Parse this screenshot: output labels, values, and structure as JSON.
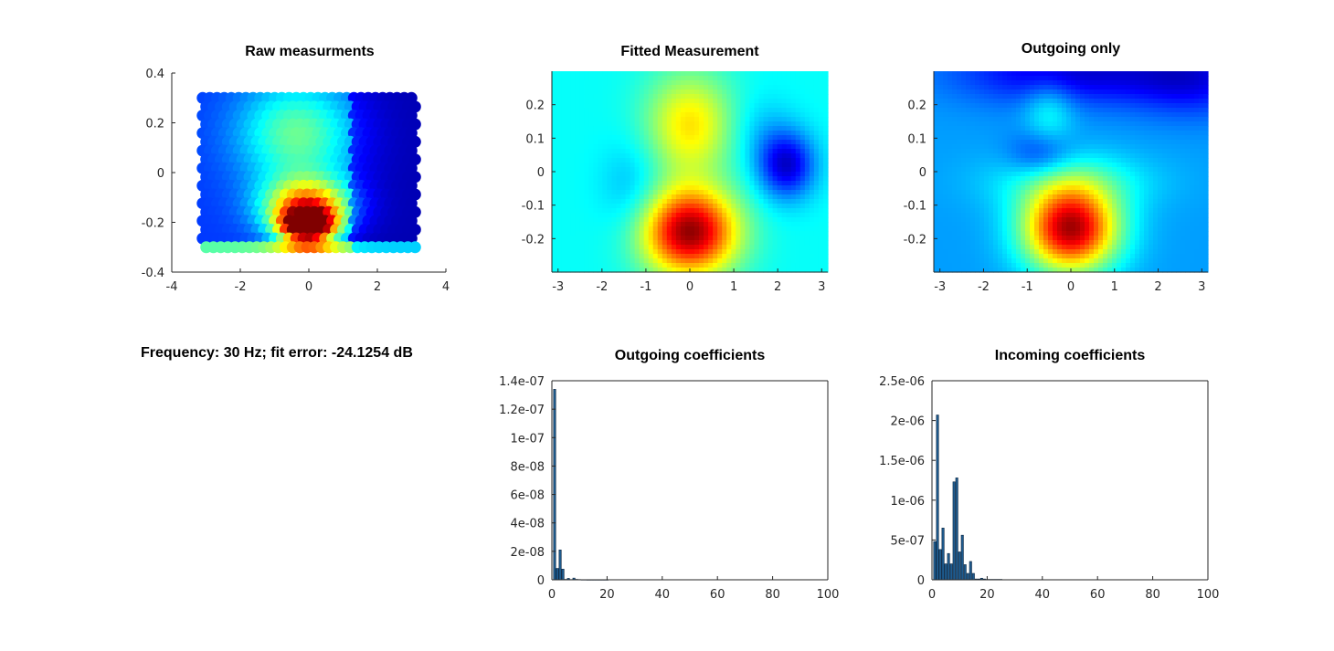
{
  "caption": {
    "label": "Frequency: 30 Hz; fit error: -24.1254 dB"
  },
  "colors": {
    "bar_fill": "#1f5c8f",
    "bar_edge": "#0b2540",
    "axis": "#262626"
  },
  "chart_data": [
    {
      "id": "raw",
      "type": "scatter",
      "title": "Raw measurments",
      "xlim": [
        -4,
        4
      ],
      "ylim": [
        -0.4,
        0.4
      ],
      "xticks": [
        -4,
        -2,
        0,
        2,
        4
      ],
      "yticks": [
        -0.4,
        -0.2,
        0,
        0.2,
        0.4
      ],
      "xticklabels": [
        "-4",
        "-2",
        "0",
        "2",
        "4"
      ],
      "yticklabels": [
        "-0.4",
        "-0.2",
        "0",
        "0.2",
        "0.4"
      ],
      "colormap": "jet",
      "box": false,
      "grid": false,
      "points_x_range": [
        -3.1,
        3.1
      ],
      "points_y_range": [
        -0.3,
        0.3
      ],
      "features": [
        {
          "x": 0,
          "y": -0.22,
          "value": 0.9,
          "sx": 0.55,
          "sy": 0.05
        },
        {
          "x": 0,
          "y": -0.14,
          "value": 0.55,
          "sx": 0.9,
          "sy": 0.08
        },
        {
          "x": -0.3,
          "y": 0.15,
          "value": 0.3,
          "sx": 1.2,
          "sy": 0.15
        }
      ]
    },
    {
      "id": "fitted",
      "type": "heatmap",
      "title": "Fitted Measurement",
      "xlim": [
        -3.14,
        3.14
      ],
      "ylim": [
        -0.3,
        0.3
      ],
      "xticks": [
        -3,
        -2,
        -1,
        0,
        1,
        2,
        3
      ],
      "yticks": [
        -0.2,
        -0.1,
        0,
        0.1,
        0.2
      ],
      "xticklabels": [
        "-3",
        "-2",
        "-1",
        "0",
        "1",
        "2",
        "3"
      ],
      "yticklabels": [
        "-0.2",
        "-0.1",
        "0",
        "0.1",
        "0.2"
      ],
      "colormap": "jet",
      "box": false,
      "grid": false,
      "background_level": 0.38,
      "features": [
        {
          "x": 0,
          "y": -0.18,
          "value": 0.6,
          "sx": 0.75,
          "sy": 0.09
        },
        {
          "x": 0,
          "y": 0.14,
          "value": 0.27,
          "sx": 0.7,
          "sy": 0.11
        },
        {
          "x": 2.2,
          "y": 0.02,
          "value": -0.3,
          "sx": 0.45,
          "sy": 0.07
        },
        {
          "x": -1.3,
          "y": -0.05,
          "value": -0.08,
          "sx": 0.5,
          "sy": 0.1
        },
        {
          "x": 1.6,
          "y": 0.12,
          "value": -0.06,
          "sx": 0.5,
          "sy": 0.08
        }
      ]
    },
    {
      "id": "outgoing",
      "type": "heatmap",
      "title": "Outgoing only",
      "xlim": [
        -3.14,
        3.14
      ],
      "ylim": [
        -0.3,
        0.3
      ],
      "xticks": [
        -3,
        -2,
        -1,
        0,
        1,
        2,
        3
      ],
      "yticks": [
        -0.2,
        -0.1,
        0,
        0.1,
        0.2
      ],
      "xticklabels": [
        "-3",
        "-2",
        "-1",
        "0",
        "1",
        "2",
        "3"
      ],
      "yticklabels": [
        "-0.2",
        "-0.1",
        "0",
        "0.1",
        "0.2"
      ],
      "colormap": "jet",
      "box": false,
      "grid": false,
      "background_level": 0.28,
      "features": [
        {
          "x": 0,
          "y": -0.17,
          "value": 0.68,
          "sx": 0.75,
          "sy": 0.09
        },
        {
          "x": 0,
          "y": -0.03,
          "value": 0.12,
          "sx": 1.3,
          "sy": 0.06
        },
        {
          "x": -0.5,
          "y": 0.18,
          "value": 0.12,
          "sx": 0.4,
          "sy": 0.07
        },
        {
          "x": 0,
          "y": 0.3,
          "value": -0.2,
          "sx": 1.8,
          "sy": 0.07
        },
        {
          "x": -0.7,
          "y": 0.05,
          "value": -0.12,
          "sx": 0.5,
          "sy": 0.05
        },
        {
          "x": 2.8,
          "y": 0.28,
          "value": -0.15,
          "sx": 1.0,
          "sy": 0.08
        }
      ]
    },
    {
      "id": "out_coef",
      "type": "bar",
      "title": "Outgoing coefficients",
      "xlim": [
        0,
        100
      ],
      "ylim": [
        0,
        1.4e-07
      ],
      "xticks": [
        0,
        20,
        40,
        60,
        80,
        100
      ],
      "xticklabels": [
        "0",
        "20",
        "40",
        "60",
        "80",
        "100"
      ],
      "yticks": [
        0,
        2e-08,
        4e-08,
        6e-08,
        8e-08,
        1e-07,
        1.2e-07,
        1.4e-07
      ],
      "yticklabels": [
        "0",
        "2e-08",
        "4e-08",
        "6e-08",
        "8e-08",
        "1e-07",
        "1.2e-07",
        "1.4e-07"
      ],
      "box": true,
      "grid": false,
      "x": [
        1,
        2,
        3,
        4,
        5,
        6,
        7,
        8,
        9,
        10,
        11,
        12,
        13,
        14,
        15,
        16,
        17,
        18,
        19,
        20
      ],
      "values": [
        1.34e-07,
        8e-09,
        2.1e-08,
        7.5e-09,
        3e-10,
        1e-09,
        2e-10,
        1.2e-09,
        3e-10,
        2e-10,
        1e-10,
        1e-10,
        5e-11,
        5e-11,
        5e-11,
        5e-11,
        5e-11,
        5e-11,
        5e-11,
        5e-11
      ]
    },
    {
      "id": "in_coef",
      "type": "bar",
      "title": "Incoming coefficients",
      "xlim": [
        0,
        100
      ],
      "ylim": [
        0,
        2.5e-06
      ],
      "xticks": [
        0,
        20,
        40,
        60,
        80,
        100
      ],
      "xticklabels": [
        "0",
        "20",
        "40",
        "60",
        "80",
        "100"
      ],
      "yticks": [
        0,
        5e-07,
        1e-06,
        1.5e-06,
        2e-06,
        2.5e-06
      ],
      "yticklabels": [
        "0",
        "5e-07",
        "1e-06",
        "1.5e-06",
        "2e-06",
        "2.5e-06"
      ],
      "box": true,
      "grid": false,
      "x": [
        1,
        2,
        3,
        4,
        5,
        6,
        7,
        8,
        9,
        10,
        11,
        12,
        13,
        14,
        15,
        16,
        17,
        18,
        19,
        20,
        21,
        22,
        23,
        24,
        25
      ],
      "values": [
        4.8e-07,
        2.07e-06,
        3.8e-07,
        6.5e-07,
        2e-07,
        3.3e-07,
        2e-07,
        1.23e-06,
        1.28e-06,
        3.5e-07,
        5.6e-07,
        1.9e-07,
        8e-08,
        2.3e-07,
        8e-08,
        1e-08,
        1e-08,
        2e-08,
        1e-08,
        5e-09,
        5e-09,
        5e-09,
        5e-09,
        5e-09,
        5e-09
      ]
    }
  ]
}
